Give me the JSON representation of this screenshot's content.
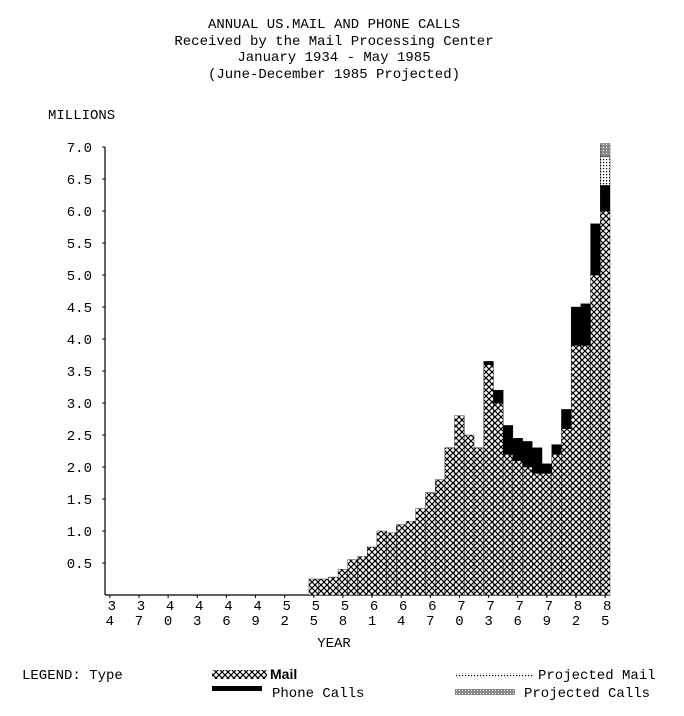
{
  "chart_data": {
    "type": "stacked-bar",
    "title": [
      "ANNUAL US.MAIL AND PHONE CALLS",
      "Received by the Mail Processing Center",
      "January 1934 - May 1985",
      "(June-December 1985 Projected)"
    ],
    "y_label": "MILLIONS",
    "x_label": "YEAR",
    "legend_title": "LEGEND: Type",
    "categories": [
      [
        "3",
        "4"
      ],
      null,
      null,
      [
        "3",
        "7"
      ],
      null,
      null,
      [
        "4",
        "0"
      ],
      null,
      null,
      [
        "4",
        "3"
      ],
      null,
      null,
      [
        "4",
        "6"
      ],
      null,
      null,
      [
        "4",
        "9"
      ],
      null,
      null,
      [
        "5",
        "2"
      ],
      null,
      null,
      [
        "5",
        "5"
      ],
      null,
      null,
      [
        "5",
        "8"
      ],
      null,
      null,
      [
        "6",
        "1"
      ],
      null,
      null,
      [
        "6",
        "4"
      ],
      null,
      null,
      [
        "6",
        "7"
      ],
      null,
      null,
      [
        "7",
        "0"
      ],
      null,
      null,
      [
        "7",
        "3"
      ],
      null,
      null,
      [
        "7",
        "6"
      ],
      null,
      null,
      [
        "7",
        "9"
      ],
      null,
      null,
      [
        "8",
        "2"
      ],
      null,
      null,
      [
        "8",
        "5"
      ]
    ],
    "series": [
      {
        "name": "Mail",
        "color": "#000000",
        "pattern": "crosshatch",
        "values": [
          null,
          null,
          null,
          null,
          null,
          null,
          null,
          null,
          null,
          null,
          null,
          null,
          null,
          null,
          null,
          null,
          null,
          null,
          null,
          null,
          null,
          0.25,
          0.25,
          0.28,
          0.4,
          0.55,
          0.6,
          0.75,
          1.0,
          0.97,
          1.1,
          1.15,
          1.35,
          1.6,
          1.8,
          2.3,
          2.8,
          2.5,
          2.3,
          3.6,
          3.0,
          2.2,
          2.1,
          2.0,
          1.9,
          1.9,
          2.2,
          2.6,
          3.9,
          3.9,
          5.0,
          6.0
        ]
      },
      {
        "name": "Phone Calls",
        "color": "#000000",
        "pattern": "solid",
        "values": [
          null,
          null,
          null,
          null,
          null,
          null,
          null,
          null,
          null,
          null,
          null,
          null,
          null,
          null,
          null,
          null,
          null,
          null,
          null,
          null,
          null,
          null,
          null,
          null,
          null,
          null,
          null,
          null,
          null,
          null,
          null,
          null,
          null,
          null,
          null,
          null,
          null,
          null,
          null,
          0.05,
          0.2,
          0.45,
          0.35,
          0.4,
          0.4,
          0.15,
          0.15,
          0.3,
          0.6,
          0.65,
          0.8,
          0.4
        ]
      },
      {
        "name": "Projected Mail",
        "color": "#000000",
        "pattern": "dots",
        "values": [
          null,
          null,
          null,
          null,
          null,
          null,
          null,
          null,
          null,
          null,
          null,
          null,
          null,
          null,
          null,
          null,
          null,
          null,
          null,
          null,
          null,
          null,
          null,
          null,
          null,
          null,
          null,
          null,
          null,
          null,
          null,
          null,
          null,
          null,
          null,
          null,
          null,
          null,
          null,
          null,
          null,
          null,
          null,
          null,
          null,
          null,
          null,
          null,
          null,
          null,
          null,
          0.45
        ]
      },
      {
        "name": "Projected Calls",
        "color": "#000000",
        "pattern": "dense",
        "values": [
          null,
          null,
          null,
          null,
          null,
          null,
          null,
          null,
          null,
          null,
          null,
          null,
          null,
          null,
          null,
          null,
          null,
          null,
          null,
          null,
          null,
          null,
          null,
          null,
          null,
          null,
          null,
          null,
          null,
          null,
          null,
          null,
          null,
          null,
          null,
          null,
          null,
          null,
          null,
          null,
          null,
          null,
          null,
          null,
          null,
          null,
          null,
          null,
          null,
          null,
          null,
          0.2
        ]
      }
    ],
    "ylim": [
      0,
      7.1
    ],
    "yticks": [
      0.5,
      {
        "value": 1,
        "label": "1.0"
      },
      1.5,
      {
        "value": 2,
        "label": "2.0"
      },
      2.5,
      {
        "value": 3,
        "label": "3.0"
      },
      3.5,
      {
        "value": 4,
        "label": "4.0"
      },
      4.5,
      {
        "value": 5,
        "label": "5.0"
      },
      5.5,
      {
        "value": 6,
        "label": "6.0"
      },
      6.5,
      {
        "value": 7,
        "label": "7.0"
      }
    ],
    "grid": false
  }
}
